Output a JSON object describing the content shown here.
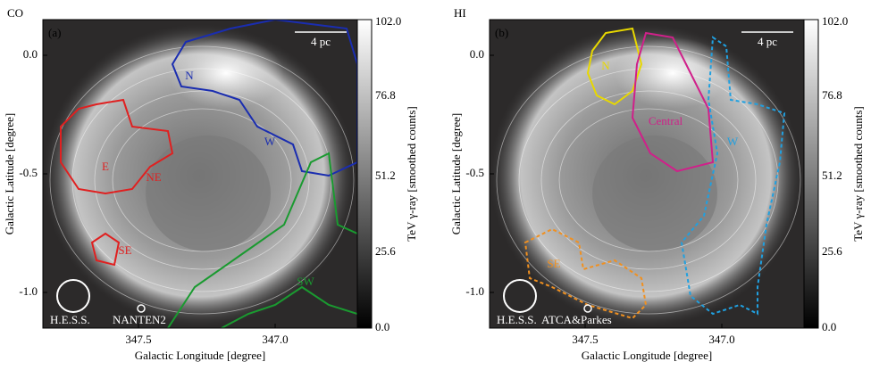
{
  "panels": [
    {
      "title": "CO",
      "tag": "(a)",
      "scale": "4 pc",
      "beams": [
        "H.E.S.S.",
        "NANTEN2"
      ],
      "regions": [
        {
          "label": "N",
          "color": "#1a2db0"
        },
        {
          "label": "W",
          "color": "#1a2db0"
        },
        {
          "label": "NE",
          "color": "#e02020"
        },
        {
          "label": "E",
          "color": "#e02020"
        },
        {
          "label": "SE",
          "color": "#e02020"
        },
        {
          "label": "SW",
          "color": "#1a9a30"
        }
      ]
    },
    {
      "title": "HI",
      "tag": "(b)",
      "scale": "4 pc",
      "beams": [
        "H.E.S.S.",
        "ATCA&Parkes"
      ],
      "regions": [
        {
          "label": "N",
          "color": "#e8d800"
        },
        {
          "label": "Central",
          "color": "#d0208a"
        },
        {
          "label": "W",
          "color": "#20a0e0"
        },
        {
          "label": "SE",
          "color": "#f09020"
        }
      ]
    }
  ],
  "y_axis": {
    "label": "Galactic Latitude [degree]",
    "ticks": [
      "0.0",
      "-0.5",
      "-1.0"
    ]
  },
  "x_axis": {
    "label": "Galactic Longitude [degree]",
    "ticks": [
      "347.5",
      "347.0"
    ]
  },
  "colorbar": {
    "label": "TeV γ-ray [smoothed counts]",
    "ticks": [
      "102.0",
      "76.8",
      "51.2",
      "25.6",
      "0.0"
    ]
  }
}
